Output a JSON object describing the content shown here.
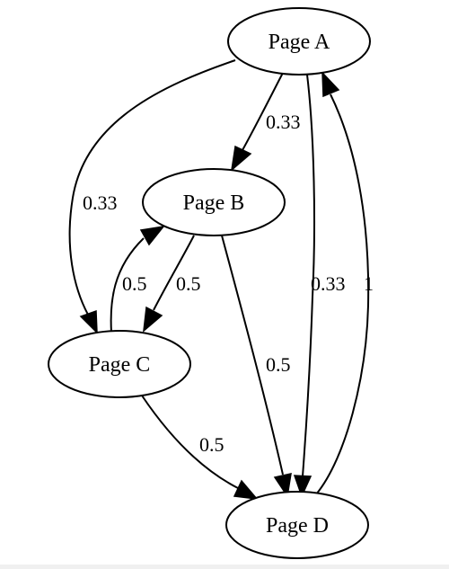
{
  "graph": {
    "nodes": [
      {
        "id": "A",
        "label": "Page A"
      },
      {
        "id": "B",
        "label": "Page B"
      },
      {
        "id": "C",
        "label": "Page C"
      },
      {
        "id": "D",
        "label": "Page D"
      }
    ],
    "edges": [
      {
        "from": "A",
        "to": "B",
        "label": "0.33"
      },
      {
        "from": "A",
        "to": "C",
        "label": "0.33"
      },
      {
        "from": "A",
        "to": "D",
        "label": "0.33"
      },
      {
        "from": "B",
        "to": "C",
        "label": "0.5"
      },
      {
        "from": "B",
        "to": "D",
        "label": "0.5"
      },
      {
        "from": "C",
        "to": "B",
        "label": "0.5"
      },
      {
        "from": "C",
        "to": "D",
        "label": "0.5"
      },
      {
        "from": "D",
        "to": "A",
        "label": "1"
      }
    ]
  },
  "colors": {
    "background": "#ffffff",
    "stroke": "#000000",
    "text": "#000000",
    "bottom_strip": "#f0f0f0"
  }
}
